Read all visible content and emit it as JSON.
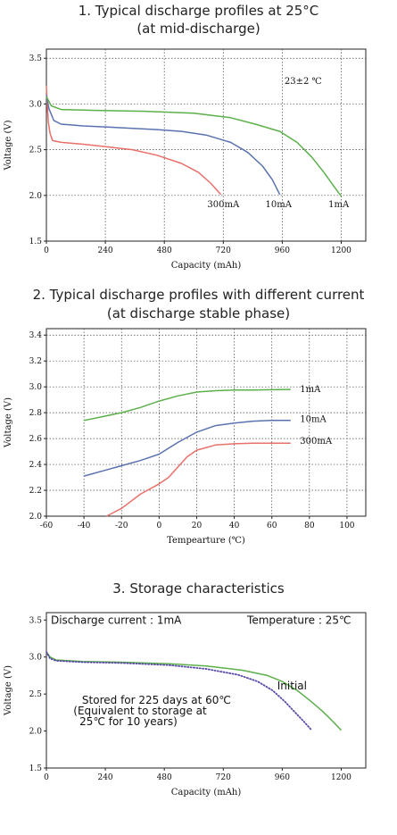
{
  "chart_data": [
    {
      "type": "line",
      "title": "1. Typical discharge profiles at 25°C",
      "subtitle": "(at mid-discharge)",
      "xlabel": "Capacity (mAh)",
      "ylabel": "Voltage (V)",
      "xlim": [
        0,
        1300
      ],
      "ylim": [
        1.5,
        3.6
      ],
      "xticks": [
        "0",
        "240",
        "480",
        "720",
        "960",
        "1200"
      ],
      "yticks": [
        "1.5",
        "2.0",
        "2.5",
        "3.0",
        "3.5"
      ],
      "grid": true,
      "annotation": "23±2 ℃",
      "series": [
        {
          "name": "300mA",
          "color": "#e8706a",
          "points": [
            [
              0,
              3.2
            ],
            [
              3,
              3.02
            ],
            [
              8,
              2.8
            ],
            [
              15,
              2.68
            ],
            [
              25,
              2.6
            ],
            [
              60,
              2.58
            ],
            [
              150,
              2.56
            ],
            [
              250,
              2.53
            ],
            [
              350,
              2.5
            ],
            [
              450,
              2.44
            ],
            [
              550,
              2.35
            ],
            [
              620,
              2.25
            ],
            [
              670,
              2.13
            ],
            [
              710,
              2.01
            ]
          ]
        },
        {
          "name": "10mA",
          "color": "#5b72b0",
          "points": [
            [
              0,
              3.1
            ],
            [
              10,
              2.95
            ],
            [
              30,
              2.82
            ],
            [
              60,
              2.78
            ],
            [
              150,
              2.76
            ],
            [
              300,
              2.74
            ],
            [
              450,
              2.72
            ],
            [
              550,
              2.7
            ],
            [
              650,
              2.66
            ],
            [
              750,
              2.58
            ],
            [
              820,
              2.47
            ],
            [
              880,
              2.32
            ],
            [
              920,
              2.17
            ],
            [
              950,
              2.01
            ]
          ]
        },
        {
          "name": "1mA",
          "color": "#5cb04a",
          "points": [
            [
              0,
              3.08
            ],
            [
              20,
              2.98
            ],
            [
              60,
              2.94
            ],
            [
              200,
              2.93
            ],
            [
              400,
              2.92
            ],
            [
              600,
              2.9
            ],
            [
              750,
              2.85
            ],
            [
              850,
              2.78
            ],
            [
              950,
              2.7
            ],
            [
              1020,
              2.58
            ],
            [
              1080,
              2.42
            ],
            [
              1130,
              2.25
            ],
            [
              1170,
              2.1
            ],
            [
              1200,
              1.99
            ]
          ]
        }
      ],
      "series_label_positions": {
        "300mA": [
          720,
          1.9
        ],
        "10mA": [
          945,
          1.9
        ],
        "1mA": [
          1190,
          1.9
        ]
      }
    },
    {
      "type": "line",
      "title": "2. Typical discharge profiles with different current",
      "subtitle": "(at discharge stable phase)",
      "xlabel": "Tempearture (℃)",
      "ylabel": "Voltage (V)",
      "xlim": [
        -60,
        110
      ],
      "ylim": [
        2.0,
        3.45
      ],
      "xticks": [
        "-60",
        "-40",
        "-20",
        "0",
        "20",
        "40",
        "60",
        "80",
        "100"
      ],
      "yticks": [
        "2.0",
        "2.2",
        "2.4",
        "2.6",
        "2.8",
        "3.0",
        "3.2",
        "3.4"
      ],
      "grid": true,
      "series": [
        {
          "name": "1mA",
          "color": "#5cb04a",
          "points": [
            [
              -40,
              2.74
            ],
            [
              -30,
              2.77
            ],
            [
              -20,
              2.8
            ],
            [
              -10,
              2.84
            ],
            [
              0,
              2.89
            ],
            [
              10,
              2.93
            ],
            [
              20,
              2.96
            ],
            [
              30,
              2.97
            ],
            [
              40,
              2.975
            ],
            [
              50,
              2.975
            ],
            [
              60,
              2.978
            ],
            [
              70,
              2.98
            ]
          ]
        },
        {
          "name": "10mA",
          "color": "#5b72b0",
          "points": [
            [
              -40,
              2.31
            ],
            [
              -30,
              2.35
            ],
            [
              -20,
              2.39
            ],
            [
              -10,
              2.43
            ],
            [
              0,
              2.48
            ],
            [
              10,
              2.57
            ],
            [
              20,
              2.65
            ],
            [
              30,
              2.7
            ],
            [
              40,
              2.72
            ],
            [
              50,
              2.735
            ],
            [
              60,
              2.74
            ],
            [
              70,
              2.74
            ]
          ]
        },
        {
          "name": "300mA",
          "color": "#e8706a",
          "points": [
            [
              -28,
              2.0
            ],
            [
              -20,
              2.06
            ],
            [
              -10,
              2.17
            ],
            [
              0,
              2.25
            ],
            [
              5,
              2.3
            ],
            [
              10,
              2.38
            ],
            [
              15,
              2.46
            ],
            [
              20,
              2.51
            ],
            [
              30,
              2.55
            ],
            [
              40,
              2.56
            ],
            [
              50,
              2.565
            ],
            [
              60,
              2.565
            ],
            [
              70,
              2.565
            ]
          ]
        }
      ],
      "series_label_positions": {
        "1mA": [
          75,
          2.98
        ],
        "10mA": [
          75,
          2.75
        ],
        "300mA": [
          75,
          2.58
        ]
      }
    },
    {
      "type": "line",
      "title": "3. Storage characteristics",
      "xlabel": "Capacity (mAh)",
      "ylabel": "Voltage (V)",
      "xlim": [
        0,
        1300
      ],
      "ylim": [
        1.5,
        3.6
      ],
      "xticks": [
        "0",
        "240",
        "480",
        "720",
        "960",
        "1200"
      ],
      "yticks": [
        "1.5",
        "2.0",
        "2.5",
        "3.0",
        "3.5"
      ],
      "grid": false,
      "annotations": [
        "Discharge current : 1mA",
        "Temperature : 25℃",
        "Stored for 225 days at 60℃",
        "(Equivalent to storage at",
        "25℃ for 10 years)"
      ],
      "series": [
        {
          "name": "Initial",
          "color": "#5cb04a",
          "style": "solid",
          "points": [
            [
              0,
              3.07
            ],
            [
              15,
              3.0
            ],
            [
              40,
              2.96
            ],
            [
              150,
              2.94
            ],
            [
              300,
              2.93
            ],
            [
              500,
              2.91
            ],
            [
              650,
              2.88
            ],
            [
              800,
              2.82
            ],
            [
              900,
              2.75
            ],
            [
              960,
              2.67
            ],
            [
              1020,
              2.55
            ],
            [
              1070,
              2.42
            ],
            [
              1120,
              2.28
            ],
            [
              1160,
              2.15
            ],
            [
              1200,
              2.01
            ]
          ]
        },
        {
          "name": "Stored",
          "color": "#5a4aa8",
          "style": "dotted",
          "points": [
            [
              0,
              3.07
            ],
            [
              15,
              2.98
            ],
            [
              40,
              2.95
            ],
            [
              150,
              2.93
            ],
            [
              300,
              2.92
            ],
            [
              500,
              2.89
            ],
            [
              650,
              2.84
            ],
            [
              780,
              2.76
            ],
            [
              860,
              2.67
            ],
            [
              920,
              2.55
            ],
            [
              970,
              2.4
            ],
            [
              1010,
              2.26
            ],
            [
              1050,
              2.12
            ],
            [
              1080,
              2.01
            ]
          ]
        }
      ],
      "series_label_positions": {
        "Initial": [
          1000,
          2.6
        ]
      }
    }
  ]
}
